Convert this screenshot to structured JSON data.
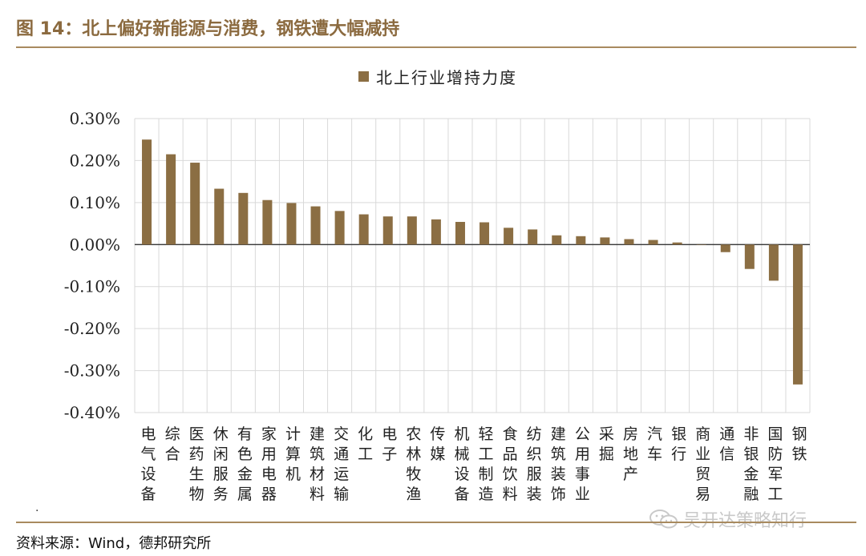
{
  "figure_title": "图 14：北上偏好新能源与消费，钢铁遭大幅减持",
  "source": "资料来源：Wind，德邦研究所",
  "stray_mark": ".",
  "watermark": {
    "text": "吴开达策略知行",
    "icon": "wechat-icon"
  },
  "colors": {
    "bar": "#8b6e43",
    "accent": "#a88a5f",
    "grid": "#d9d9d9"
  },
  "chart_data": {
    "type": "bar",
    "title": "",
    "xlabel": "",
    "ylabel": "",
    "categories": [
      "电气设备",
      "综合",
      "医药生物",
      "休闲服务",
      "有色金属",
      "家用电器",
      "计算机",
      "建筑材料",
      "交通运输",
      "化工",
      "电子",
      "农林牧渔",
      "传媒",
      "机械设备",
      "轻工制造",
      "食品饮料",
      "纺织服装",
      "建筑装饰",
      "公用事业",
      "采掘",
      "房地产",
      "汽车",
      "银行",
      "商业贸易",
      "通信",
      "非银金融",
      "国防军工",
      "钢铁"
    ],
    "series": [
      {
        "name": "北上行业增持力度",
        "values": [
          0.25,
          0.215,
          0.195,
          0.133,
          0.123,
          0.106,
          0.099,
          0.091,
          0.08,
          0.072,
          0.067,
          0.067,
          0.06,
          0.054,
          0.053,
          0.04,
          0.036,
          0.022,
          0.02,
          0.017,
          0.013,
          0.011,
          0.005,
          0.0,
          -0.018,
          -0.058,
          -0.086,
          -0.333
        ]
      }
    ],
    "ylim": [
      -0.4,
      0.3
    ],
    "yticks": [
      0.3,
      0.2,
      0.1,
      0.0,
      -0.1,
      -0.2,
      -0.3,
      -0.4
    ],
    "ytick_labels": [
      "0.30%",
      "0.20%",
      "0.10%",
      "0.00%",
      "-0.10%",
      "-0.20%",
      "-0.30%",
      "-0.40%"
    ],
    "grid": true,
    "legend_position": "top-center"
  }
}
